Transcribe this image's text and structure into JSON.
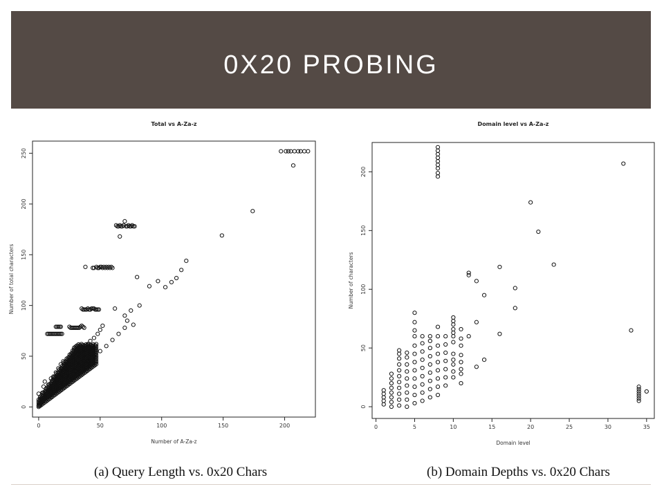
{
  "slide": {
    "title": "0X20 PROBING",
    "captions": [
      "(a) Query Length vs. 0x20 Chars",
      "(b) Domain Depths vs. 0x20 Chars"
    ],
    "colors": {
      "banner": "#544a45",
      "title_text": "#ffffff",
      "footer_line": "#d9cfc7"
    }
  },
  "chart_data": [
    {
      "type": "scatter",
      "title": "Total vs A-Za-z",
      "xlabel": "Number of A-Za-z",
      "ylabel": "Number of total characters",
      "xlim": [
        -5,
        225
      ],
      "ylim": [
        -10,
        262
      ],
      "xticks": [
        0,
        50,
        100,
        150,
        200
      ],
      "yticks": [
        0,
        50,
        100,
        150,
        200,
        250
      ],
      "grid": false,
      "points": [
        [
          0,
          1
        ],
        [
          1,
          2
        ],
        [
          2,
          4
        ],
        [
          1,
          3
        ],
        [
          3,
          5
        ],
        [
          0,
          13
        ],
        [
          2,
          8
        ],
        [
          3,
          14
        ],
        [
          4,
          20
        ],
        [
          5,
          25
        ],
        [
          6,
          18
        ],
        [
          8,
          22
        ],
        [
          10,
          28
        ],
        [
          12,
          30
        ],
        [
          14,
          34
        ],
        [
          16,
          38
        ],
        [
          18,
          42
        ],
        [
          20,
          45
        ],
        [
          10,
          15
        ],
        [
          12,
          20
        ],
        [
          15,
          25
        ],
        [
          18,
          30
        ],
        [
          20,
          35
        ],
        [
          22,
          38
        ],
        [
          25,
          42
        ],
        [
          28,
          46
        ],
        [
          30,
          50
        ],
        [
          32,
          52
        ],
        [
          35,
          55
        ],
        [
          38,
          58
        ],
        [
          40,
          62
        ],
        [
          42,
          65
        ],
        [
          45,
          68
        ],
        [
          48,
          72
        ],
        [
          50,
          76
        ],
        [
          52,
          80
        ],
        [
          25,
          30
        ],
        [
          30,
          35
        ],
        [
          35,
          40
        ],
        [
          40,
          45
        ],
        [
          45,
          50
        ],
        [
          50,
          55
        ],
        [
          55,
          60
        ],
        [
          60,
          66
        ],
        [
          65,
          72
        ],
        [
          70,
          78
        ],
        [
          7,
          72
        ],
        [
          8,
          72
        ],
        [
          9,
          72
        ],
        [
          10,
          72
        ],
        [
          11,
          72
        ],
        [
          12,
          72
        ],
        [
          13,
          72
        ],
        [
          14,
          72
        ],
        [
          15,
          72
        ],
        [
          16,
          72
        ],
        [
          17,
          72
        ],
        [
          18,
          72
        ],
        [
          19,
          72
        ],
        [
          14,
          79
        ],
        [
          15,
          79
        ],
        [
          16,
          79
        ],
        [
          17,
          79
        ],
        [
          18,
          79
        ],
        [
          25,
          79
        ],
        [
          26,
          78
        ],
        [
          27,
          78
        ],
        [
          28,
          78
        ],
        [
          29,
          78
        ],
        [
          30,
          78
        ],
        [
          31,
          78
        ],
        [
          32,
          78
        ],
        [
          33,
          78
        ],
        [
          34,
          79
        ],
        [
          35,
          80
        ],
        [
          36,
          79
        ],
        [
          37,
          78
        ],
        [
          35,
          97
        ],
        [
          36,
          96
        ],
        [
          37,
          96
        ],
        [
          38,
          96
        ],
        [
          39,
          96
        ],
        [
          40,
          97
        ],
        [
          41,
          96
        ],
        [
          42,
          96
        ],
        [
          43,
          97
        ],
        [
          44,
          97
        ],
        [
          45,
          97
        ],
        [
          46,
          96
        ],
        [
          47,
          96
        ],
        [
          48,
          96
        ],
        [
          49,
          96
        ],
        [
          38,
          138
        ],
        [
          44,
          137
        ],
        [
          45,
          137
        ],
        [
          47,
          138
        ],
        [
          48,
          137
        ],
        [
          49,
          137
        ],
        [
          50,
          138
        ],
        [
          51,
          138
        ],
        [
          52,
          137
        ],
        [
          53,
          138
        ],
        [
          54,
          137
        ],
        [
          55,
          138
        ],
        [
          56,
          137
        ],
        [
          57,
          138
        ],
        [
          58,
          137
        ],
        [
          59,
          138
        ],
        [
          60,
          137
        ],
        [
          63,
          179
        ],
        [
          64,
          178
        ],
        [
          65,
          178
        ],
        [
          66,
          179
        ],
        [
          67,
          178
        ],
        [
          68,
          178
        ],
        [
          69,
          179
        ],
        [
          70,
          183
        ],
        [
          71,
          178
        ],
        [
          72,
          178
        ],
        [
          73,
          179
        ],
        [
          74,
          178
        ],
        [
          75,
          178
        ],
        [
          76,
          179
        ],
        [
          77,
          178
        ],
        [
          78,
          178
        ],
        [
          66,
          168
        ],
        [
          62,
          97
        ],
        [
          70,
          90
        ],
        [
          72,
          85
        ],
        [
          75,
          95
        ],
        [
          77,
          81
        ],
        [
          82,
          100
        ],
        [
          80,
          128
        ],
        [
          90,
          119
        ],
        [
          97,
          124
        ],
        [
          103,
          118
        ],
        [
          108,
          123
        ],
        [
          112,
          127
        ],
        [
          116,
          135
        ],
        [
          120,
          144
        ],
        [
          149,
          169
        ],
        [
          174,
          193
        ],
        [
          197,
          252
        ],
        [
          201,
          252
        ],
        [
          203,
          252
        ],
        [
          205,
          252
        ],
        [
          208,
          252
        ],
        [
          211,
          252
        ],
        [
          213,
          252
        ],
        [
          216,
          252
        ],
        [
          219,
          252
        ],
        [
          207,
          238
        ]
      ]
    },
    {
      "type": "scatter",
      "title": "Domain level vs A-Za-z",
      "xlabel": "Domain level",
      "ylabel": "Number of characters",
      "xlim": [
        -0.5,
        36
      ],
      "ylim": [
        -10,
        225
      ],
      "xticks": [
        0,
        5,
        10,
        15,
        20,
        25,
        30,
        35
      ],
      "yticks": [
        0,
        50,
        100,
        150,
        200
      ],
      "grid": false,
      "points": [
        [
          1,
          2
        ],
        [
          1,
          5
        ],
        [
          1,
          8
        ],
        [
          1,
          11
        ],
        [
          1,
          14
        ],
        [
          2,
          0
        ],
        [
          2,
          4
        ],
        [
          2,
          8
        ],
        [
          2,
          12
        ],
        [
          2,
          16
        ],
        [
          2,
          20
        ],
        [
          2,
          24
        ],
        [
          2,
          28
        ],
        [
          3,
          1
        ],
        [
          3,
          6
        ],
        [
          3,
          11
        ],
        [
          3,
          16
        ],
        [
          3,
          21
        ],
        [
          3,
          26
        ],
        [
          3,
          31
        ],
        [
          3,
          36
        ],
        [
          3,
          41
        ],
        [
          3,
          45
        ],
        [
          3,
          48
        ],
        [
          4,
          0
        ],
        [
          4,
          6
        ],
        [
          4,
          12
        ],
        [
          4,
          18
        ],
        [
          4,
          24
        ],
        [
          4,
          30
        ],
        [
          4,
          36
        ],
        [
          4,
          42
        ],
        [
          4,
          46
        ],
        [
          5,
          3
        ],
        [
          5,
          10
        ],
        [
          5,
          17
        ],
        [
          5,
          24
        ],
        [
          5,
          31
        ],
        [
          5,
          38
        ],
        [
          5,
          45
        ],
        [
          5,
          52
        ],
        [
          5,
          60
        ],
        [
          5,
          65
        ],
        [
          5,
          72
        ],
        [
          5,
          80
        ],
        [
          6,
          5
        ],
        [
          6,
          12
        ],
        [
          6,
          19
        ],
        [
          6,
          26
        ],
        [
          6,
          33
        ],
        [
          6,
          40
        ],
        [
          6,
          47
        ],
        [
          6,
          54
        ],
        [
          6,
          60
        ],
        [
          7,
          8
        ],
        [
          7,
          15
        ],
        [
          7,
          22
        ],
        [
          7,
          29
        ],
        [
          7,
          36
        ],
        [
          7,
          43
        ],
        [
          7,
          50
        ],
        [
          7,
          56
        ],
        [
          7,
          60
        ],
        [
          8,
          10
        ],
        [
          8,
          17
        ],
        [
          8,
          24
        ],
        [
          8,
          31
        ],
        [
          8,
          38
        ],
        [
          8,
          45
        ],
        [
          8,
          52
        ],
        [
          8,
          60
        ],
        [
          8,
          68
        ],
        [
          8,
          196
        ],
        [
          8,
          199
        ],
        [
          8,
          203
        ],
        [
          8,
          206
        ],
        [
          8,
          209
        ],
        [
          8,
          212
        ],
        [
          8,
          215
        ],
        [
          8,
          218
        ],
        [
          8,
          221
        ],
        [
          9,
          18
        ],
        [
          9,
          25
        ],
        [
          9,
          32
        ],
        [
          9,
          39
        ],
        [
          9,
          46
        ],
        [
          9,
          53
        ],
        [
          9,
          60
        ],
        [
          10,
          25
        ],
        [
          10,
          30
        ],
        [
          10,
          36
        ],
        [
          10,
          40
        ],
        [
          10,
          45
        ],
        [
          10,
          55
        ],
        [
          10,
          60
        ],
        [
          10,
          63
        ],
        [
          10,
          66
        ],
        [
          10,
          70
        ],
        [
          10,
          73
        ],
        [
          10,
          76
        ],
        [
          11,
          20
        ],
        [
          11,
          28
        ],
        [
          11,
          32
        ],
        [
          11,
          38
        ],
        [
          11,
          44
        ],
        [
          11,
          52
        ],
        [
          11,
          58
        ],
        [
          11,
          66
        ],
        [
          12,
          60
        ],
        [
          12,
          112
        ],
        [
          12,
          114
        ],
        [
          13,
          34
        ],
        [
          13,
          72
        ],
        [
          13,
          107
        ],
        [
          14,
          40
        ],
        [
          14,
          95
        ],
        [
          16,
          62
        ],
        [
          16,
          119
        ],
        [
          18,
          84
        ],
        [
          18,
          101
        ],
        [
          20,
          174
        ],
        [
          21,
          149
        ],
        [
          23,
          121
        ],
        [
          32,
          207
        ],
        [
          33,
          65
        ],
        [
          34,
          5
        ],
        [
          34,
          7
        ],
        [
          34,
          9
        ],
        [
          34,
          11
        ],
        [
          34,
          13
        ],
        [
          34,
          15
        ],
        [
          34,
          17
        ],
        [
          35,
          13
        ]
      ]
    }
  ]
}
